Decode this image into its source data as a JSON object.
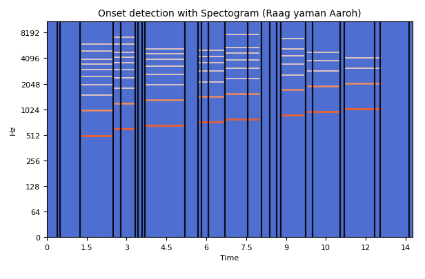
{
  "chart_data": {
    "type": "spectrogram",
    "title": "Onset detection with Spectogram (Raag yaman Aaroh)",
    "x_label": "Time",
    "y_label": "Hz",
    "xlim": [
      0,
      13.75
    ],
    "xticks": [
      0,
      1.5,
      3,
      4.5,
      6,
      7.5,
      9,
      {
        "value": 10.5,
        "label": "10"
      },
      12,
      {
        "value": 13.5,
        "label": "14"
      }
    ],
    "ylim": [
      0,
      11025
    ],
    "yticks": [
      0,
      64,
      128,
      256,
      512,
      1024,
      2048,
      4096,
      8192
    ],
    "log": "y",
    "onsets": [
      0.4,
      0.5,
      1.25,
      2.5,
      2.78,
      3.33,
      3.43,
      3.58,
      3.68,
      5.2,
      5.68,
      5.83,
      6.08,
      6.7,
      7.55,
      8.08,
      8.38,
      8.65,
      8.8,
      9.73,
      10.0,
      11.03,
      11.2,
      12.33,
      12.55,
      13.63
    ],
    "notes": [
      {
        "start": 1.3,
        "end": 2.5,
        "frequencies": [
          500,
          1000,
          1500,
          2000,
          2500,
          3000,
          3500,
          4000,
          5000,
          6000
        ]
      },
      {
        "start": 2.5,
        "end": 3.3,
        "frequencies": [
          600,
          1200,
          1800,
          2400,
          3000,
          3600,
          4200,
          4800,
          6000,
          7200
        ]
      },
      {
        "start": 3.7,
        "end": 5.2,
        "frequencies": [
          660,
          1320,
          1980,
          2640,
          3300,
          3960,
          4620,
          5280
        ]
      },
      {
        "start": 5.7,
        "end": 6.7,
        "frequencies": [
          720,
          1440,
          2160,
          2880,
          3600,
          4320,
          5040
        ]
      },
      {
        "start": 6.7,
        "end": 8.0,
        "frequencies": [
          780,
          1560,
          2340,
          3120,
          3900,
          4680,
          5460,
          7800
        ]
      },
      {
        "start": 8.8,
        "end": 9.7,
        "frequencies": [
          870,
          1740,
          2610,
          3480,
          4350,
          5220,
          6960
        ]
      },
      {
        "start": 9.8,
        "end": 11.0,
        "frequencies": [
          960,
          1920,
          2880,
          3840,
          4800
        ]
      },
      {
        "start": 11.2,
        "end": 12.6,
        "frequencies": [
          1040,
          2080,
          3120,
          4160
        ]
      }
    ]
  }
}
